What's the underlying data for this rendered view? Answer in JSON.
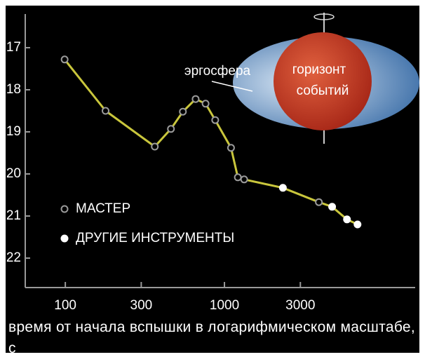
{
  "chart_data": {
    "type": "line",
    "x_label": "время от начала вспышки в логарифмическом масштабе, с",
    "xlog": true,
    "xlim": [
      56,
      15800
    ],
    "xticks": [
      100,
      300,
      1000,
      3000
    ],
    "ylim": [
      16.2,
      22.7
    ],
    "yinverted": true,
    "yticks": [
      17,
      18,
      19,
      20,
      21,
      22
    ],
    "line_color": "#c9c63c",
    "series": [
      {
        "name": "МАСТЕР",
        "color": "#9a9a9a",
        "marker": "open",
        "x": [
          99,
          179,
          365,
          461,
          548,
          659,
          761,
          875,
          1100,
          1214,
          1330,
          3920
        ],
        "values": [
          17.28,
          18.5,
          19.35,
          18.93,
          18.52,
          18.22,
          18.33,
          18.72,
          19.38,
          20.08,
          20.13,
          20.67
        ]
      },
      {
        "name": "ДРУГИЕ ИНСТРУМЕНТЫ",
        "color": "#ffffff",
        "marker": "filled",
        "x": [
          2330,
          4750,
          5890,
          6860
        ],
        "values": [
          20.33,
          20.78,
          21.08,
          21.2
        ]
      }
    ],
    "annotations": [
      "эргосфера",
      "горизонт",
      "событий"
    ]
  }
}
